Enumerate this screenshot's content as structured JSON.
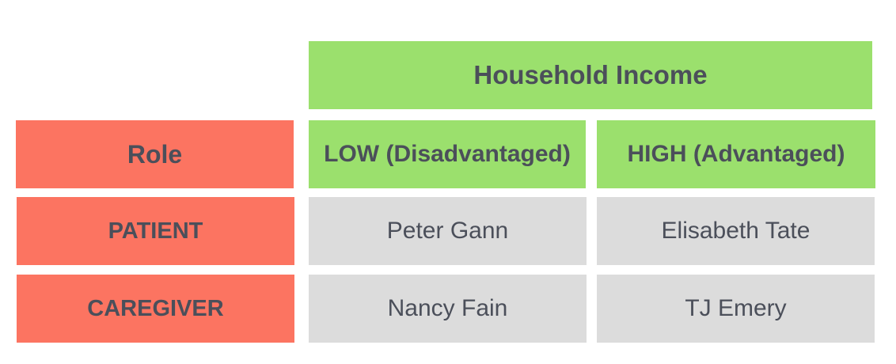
{
  "colors": {
    "header_green": "#9be06d",
    "role_red": "#fc7461",
    "cell_gray": "#dcdcdc",
    "text": "#4b4f5a"
  },
  "table": {
    "column_group_title": "Household Income",
    "row_header_title": "Role",
    "columns": [
      "LOW (Disadvantaged)",
      "HIGH (Advantaged)"
    ],
    "rows": [
      {
        "label": "PATIENT",
        "low": "Peter Gann",
        "high": "Elisabeth Tate"
      },
      {
        "label": "CAREGIVER",
        "low": "Nancy Fain",
        "high": "TJ Emery"
      }
    ]
  }
}
